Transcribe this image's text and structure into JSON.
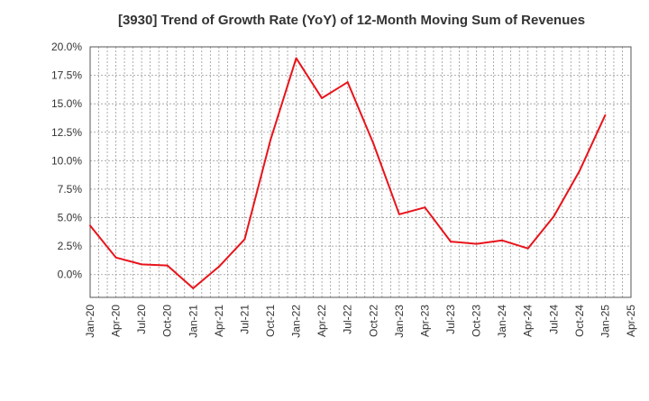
{
  "chart_data": {
    "type": "line",
    "title": "[3930]  Trend of Growth Rate (YoY) of 12-Month Moving Sum of Revenues",
    "xlabel": "",
    "ylabel": "",
    "categories": [
      "Jan-20",
      "Apr-20",
      "Jul-20",
      "Oct-20",
      "Jan-21",
      "Apr-21",
      "Jul-21",
      "Oct-21",
      "Jan-22",
      "Apr-22",
      "Jul-22",
      "Oct-22",
      "Jan-23",
      "Apr-23",
      "Jul-23",
      "Oct-23",
      "Jan-24",
      "Apr-24",
      "Jul-24",
      "Oct-24",
      "Jan-25",
      "Apr-25"
    ],
    "series": [
      {
        "color": "#e8141b",
        "values": [
          4.3,
          1.5,
          0.9,
          0.8,
          -1.2,
          0.7,
          3.1,
          11.8,
          19.0,
          15.5,
          16.9,
          11.5,
          5.3,
          5.9,
          2.9,
          2.7,
          3.0,
          2.3,
          5.1,
          9.1,
          14.0,
          null
        ]
      }
    ],
    "ylim": [
      -2.0,
      20.0
    ],
    "yticks": [
      0.0,
      2.5,
      5.0,
      7.5,
      10.0,
      12.5,
      15.0,
      17.5,
      20.0
    ],
    "ytick_labels": [
      "0.0%",
      "2.5%",
      "5.0%",
      "7.5%",
      "10.0%",
      "12.5%",
      "15.0%",
      "17.5%",
      "20.0%"
    ],
    "grid": true,
    "legend": "none"
  }
}
